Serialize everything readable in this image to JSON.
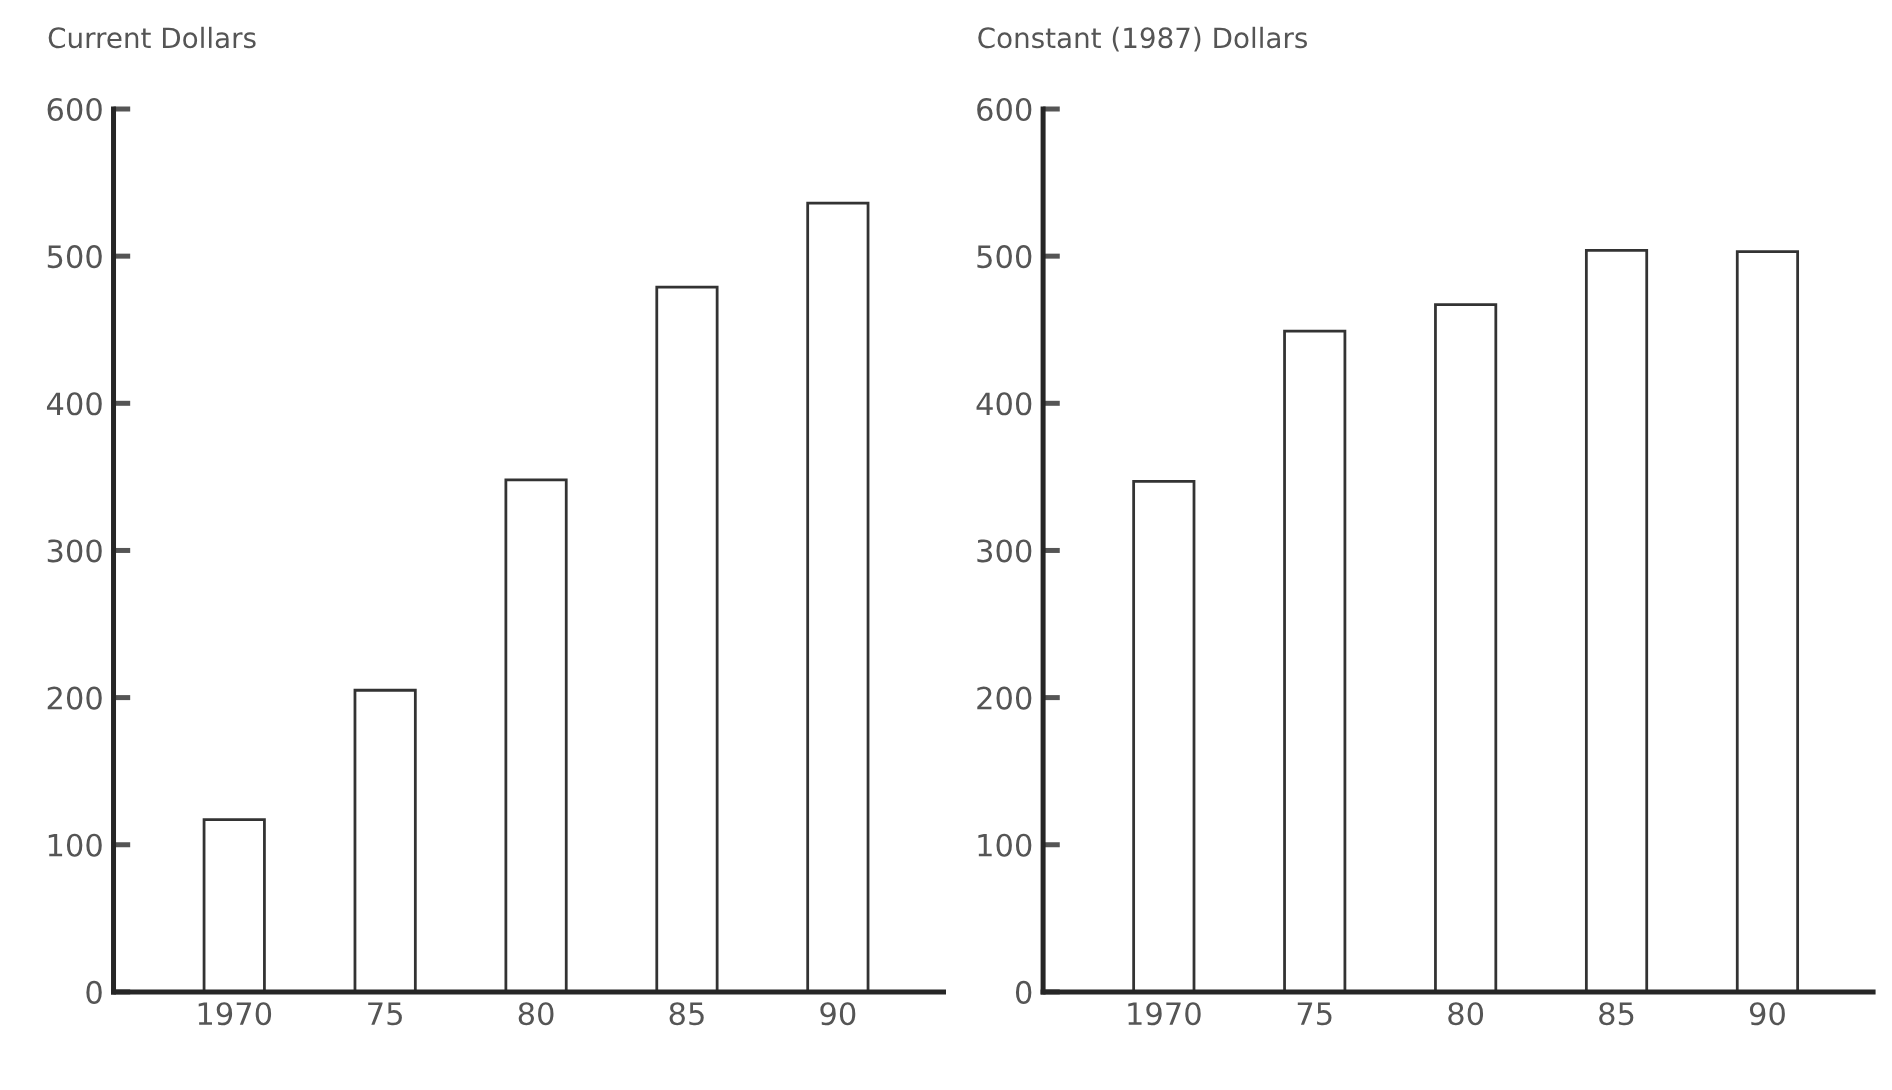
{
  "chart_data": [
    {
      "type": "bar",
      "title": "Current Dollars",
      "categories": [
        "1970",
        "75",
        "80",
        "85",
        "90"
      ],
      "values": [
        117,
        205,
        348,
        479,
        536
      ],
      "color": "#ffffff",
      "ylim": [
        0,
        600
      ],
      "yticks": [
        0,
        100,
        200,
        300,
        400,
        500,
        600
      ],
      "grid": false,
      "legend": false
    },
    {
      "type": "bar",
      "title": "Constant (1987) Dollars",
      "categories": [
        "1970",
        "75",
        "80",
        "85",
        "90"
      ],
      "values": [
        347,
        449,
        467,
        504,
        503
      ],
      "color": "#ffffff",
      "ylim": [
        0,
        600
      ],
      "yticks": [
        0,
        100,
        200,
        300,
        400,
        500,
        600
      ],
      "grid": false,
      "legend": false
    }
  ]
}
